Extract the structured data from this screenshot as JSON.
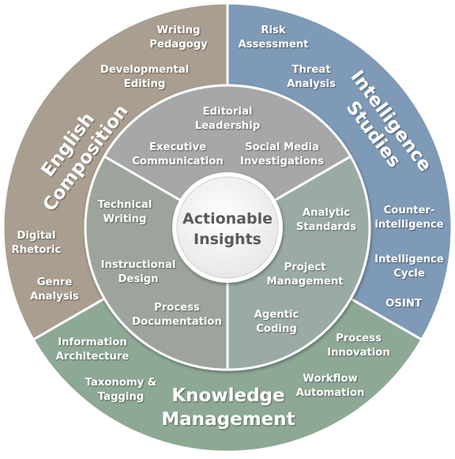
{
  "center": {
    "line1": "Actionable",
    "line2": "Insights"
  },
  "outer_ring": [
    {
      "name": [
        "English",
        "Composition"
      ],
      "color": "#a99e8f",
      "items": [
        [
          "Writing",
          "Pedagogy"
        ],
        [
          "Developmental",
          "Editing"
        ],
        [
          "Digital",
          "Rhetoric"
        ],
        [
          "Genre",
          "Analysis"
        ]
      ]
    },
    {
      "name": [
        "Intelligence",
        "Studies"
      ],
      "color": "#7f9ab6",
      "items": [
        [
          "Risk",
          "Assessment"
        ],
        [
          "Threat",
          "Analysis"
        ],
        [
          "Counter-",
          "intelligence"
        ],
        [
          "Intelligence",
          "Cycle"
        ],
        [
          "OSINT"
        ]
      ]
    },
    {
      "name": [
        "Knowledge",
        "Management"
      ],
      "color": "#8ea896",
      "items": [
        [
          "Information",
          "Architecture"
        ],
        [
          "Taxonomy &",
          "Tagging"
        ],
        [
          "Process",
          "Innovation"
        ],
        [
          "Workflow",
          "Automation"
        ]
      ]
    }
  ],
  "inner_ring": [
    {
      "color": "#a6a7a8",
      "items": [
        [
          "Editorial",
          "Leadership"
        ],
        [
          "Executive",
          "Communication"
        ],
        [
          "Social Media",
          "Investigations"
        ]
      ]
    },
    {
      "color": "#9aaba6",
      "items": [
        [
          "Analytic",
          "Standards"
        ],
        [
          "Project",
          "Management"
        ],
        [
          "Agentic",
          "Coding"
        ]
      ]
    },
    {
      "color": "#9ca49c",
      "items": [
        [
          "Technical",
          "Writing"
        ],
        [
          "Instructional",
          "Design"
        ],
        [
          "Process",
          "Documentation"
        ]
      ]
    }
  ]
}
